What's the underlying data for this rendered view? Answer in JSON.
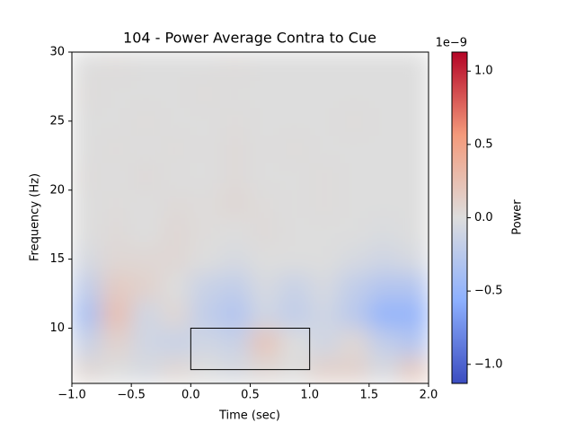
{
  "chart_data": {
    "type": "heatmap",
    "title": "104 - Power Average Contra to Cue",
    "x_label": "Time (sec)",
    "y_label": "Frequency (Hz)",
    "colorbar_label": "Power",
    "colorbar_offset": "1e−9",
    "colormap": "coolwarm",
    "x_edges": [
      -1,
      -0.75,
      -0.5,
      -0.25,
      0,
      0.25,
      0.5,
      0.75,
      1,
      1.25,
      1.5,
      1.75,
      2
    ],
    "y_edges": [
      6,
      8,
      10,
      12,
      14,
      16,
      18,
      20,
      22,
      24,
      26,
      28,
      30
    ],
    "z": [
      [
        0.05,
        0,
        -0.05,
        0.05,
        0,
        -0.05,
        0.05,
        0,
        0.1,
        0.1,
        -0.05,
        0.15
      ],
      [
        -0.15,
        0.1,
        -0.1,
        -0.15,
        -0.1,
        -0.15,
        0.2,
        0,
        -0.1,
        0.05,
        -0.2,
        -0.3
      ],
      [
        -0.35,
        0.25,
        -0.1,
        0.05,
        -0.2,
        -0.3,
        -0.1,
        -0.2,
        -0.1,
        -0.25,
        -0.5,
        -0.5
      ],
      [
        -0.2,
        0.15,
        0.1,
        0,
        -0.15,
        -0.2,
        -0.05,
        -0.15,
        -0.05,
        -0.2,
        -0.3,
        -0.3
      ],
      [
        -0.05,
        0.05,
        0.05,
        0.05,
        0,
        -0.05,
        0,
        0,
        0,
        -0.05,
        -0.1,
        -0.05
      ],
      [
        0,
        0.03,
        0,
        0.05,
        0.02,
        0,
        0.03,
        0,
        0,
        0,
        -0.03,
        0
      ],
      [
        0,
        0.02,
        0,
        0.03,
        0.02,
        0.05,
        0.02,
        0,
        0.02,
        0,
        0,
        0
      ],
      [
        0.02,
        0,
        0.03,
        0,
        0,
        0.03,
        0,
        0,
        0.02,
        0,
        0,
        0
      ],
      [
        0,
        0.02,
        0,
        0.02,
        0,
        0.03,
        0,
        0.02,
        0,
        0,
        0,
        0
      ],
      [
        0,
        0,
        0.02,
        0,
        0,
        0.02,
        0,
        0,
        0,
        0.02,
        0,
        0
      ],
      [
        0.02,
        0,
        0,
        0,
        0.02,
        0,
        0,
        0,
        0,
        0,
        0,
        0
      ],
      [
        0,
        0.02,
        0,
        0,
        0,
        0.02,
        0,
        0,
        0,
        0,
        0,
        0
      ]
    ],
    "box": {
      "x": [
        0,
        1
      ],
      "y": [
        7,
        10
      ]
    },
    "xlim": [
      -1,
      2
    ],
    "ylim": [
      6,
      30
    ],
    "clim": [
      -1.13,
      1.13
    ],
    "xticks": [
      {
        "value": -1,
        "label": "−1.0"
      },
      {
        "value": -0.5,
        "label": "−0.5"
      },
      {
        "value": 0,
        "label": "0.0"
      },
      {
        "value": 0.5,
        "label": "0.5"
      },
      {
        "value": 1,
        "label": "1.0"
      },
      {
        "value": 1.5,
        "label": "1.5"
      },
      {
        "value": 2,
        "label": "2.0"
      }
    ],
    "yticks": [
      10,
      15,
      20,
      25,
      30
    ],
    "cticks": [
      {
        "value": -1,
        "label": "−1.0"
      },
      {
        "value": -0.5,
        "label": "−0.5"
      },
      {
        "value": 0,
        "label": "0.0"
      },
      {
        "value": 0.5,
        "label": "0.5"
      },
      {
        "value": 1,
        "label": "1.0"
      }
    ]
  }
}
